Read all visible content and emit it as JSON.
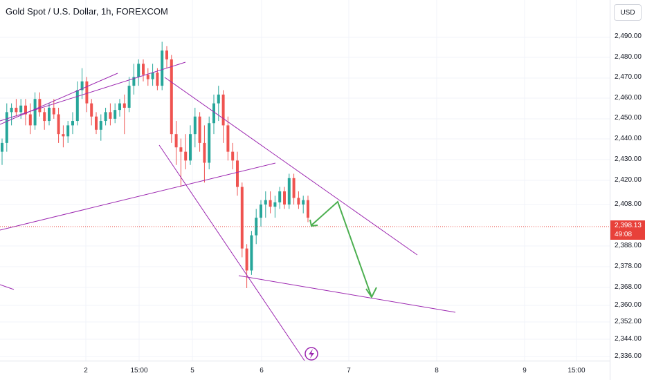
{
  "header": {
    "title": "Gold Spot / U.S. Dollar, 1h, FOREXCOM"
  },
  "price_axis": {
    "currency_button": "USD",
    "ticks": [
      "2,490.00",
      "2,480.00",
      "2,470.00",
      "2,460.00",
      "2,450.00",
      "2,440.00",
      "2,430.00",
      "2,420.00",
      "2,408.00",
      "2,388.00",
      "2,378.00",
      "2,368.00",
      "2,360.00",
      "2,352.00",
      "2,344.00",
      "2,336.00"
    ],
    "last_price": "2,398.13",
    "countdown": "49:08"
  },
  "time_axis": {
    "ticks": [
      "2",
      "15:00",
      "5",
      "6",
      "7",
      "8",
      "9",
      "15:00"
    ]
  },
  "colors": {
    "up": "#26a69a",
    "down": "#ef5350",
    "trendline": "#9c27b0",
    "arrow": "#4caf50",
    "last_price": "#e8413a"
  },
  "icons": {
    "replay": "lightning-icon"
  },
  "chart_data": {
    "type": "candlestick",
    "symbol": "XAUUSD",
    "timeframe": "1h",
    "ylim": [
      2333,
      2497
    ],
    "last_price": 2398.13,
    "candles": [
      [
        2428,
        2434,
        2422,
        2432
      ],
      [
        2432,
        2450,
        2428,
        2446
      ],
      [
        2446,
        2450,
        2440,
        2448
      ],
      [
        2448,
        2452,
        2444,
        2446
      ],
      [
        2446,
        2452,
        2443,
        2449
      ],
      [
        2449,
        2452,
        2440,
        2445
      ],
      [
        2445,
        2450,
        2436,
        2440
      ],
      [
        2440,
        2455,
        2438,
        2452
      ],
      [
        2452,
        2455,
        2444,
        2446
      ],
      [
        2446,
        2448,
        2438,
        2442
      ],
      [
        2442,
        2450,
        2440,
        2448
      ],
      [
        2448,
        2452,
        2443,
        2445
      ],
      [
        2445,
        2448,
        2432,
        2436
      ],
      [
        2436,
        2440,
        2430,
        2435
      ],
      [
        2435,
        2442,
        2432,
        2440
      ],
      [
        2440,
        2446,
        2436,
        2442
      ],
      [
        2442,
        2460,
        2440,
        2456
      ],
      [
        2456,
        2466,
        2452,
        2460
      ],
      [
        2460,
        2462,
        2446,
        2450
      ],
      [
        2450,
        2452,
        2440,
        2444
      ],
      [
        2444,
        2446,
        2436,
        2438
      ],
      [
        2438,
        2445,
        2433,
        2442
      ],
      [
        2442,
        2448,
        2440,
        2446
      ],
      [
        2446,
        2450,
        2440,
        2443
      ],
      [
        2443,
        2450,
        2441,
        2447
      ],
      [
        2447,
        2452,
        2444,
        2450
      ],
      [
        2450,
        2454,
        2436,
        2448
      ],
      [
        2448,
        2462,
        2446,
        2458
      ],
      [
        2458,
        2468,
        2454,
        2462
      ],
      [
        2462,
        2470,
        2458,
        2468
      ],
      [
        2468,
        2470,
        2460,
        2463
      ],
      [
        2463,
        2466,
        2458,
        2461
      ],
      [
        2461,
        2468,
        2458,
        2464
      ],
      [
        2464,
        2466,
        2456,
        2458
      ],
      [
        2458,
        2478,
        2456,
        2474
      ],
      [
        2474,
        2476,
        2466,
        2470
      ],
      [
        2470,
        2472,
        2432,
        2436
      ],
      [
        2436,
        2442,
        2422,
        2430
      ],
      [
        2430,
        2434,
        2412,
        2428
      ],
      [
        2428,
        2436,
        2420,
        2424
      ],
      [
        2424,
        2440,
        2422,
        2436
      ],
      [
        2436,
        2448,
        2430,
        2444
      ],
      [
        2444,
        2446,
        2428,
        2432
      ],
      [
        2432,
        2440,
        2414,
        2423
      ],
      [
        2423,
        2444,
        2420,
        2441
      ],
      [
        2441,
        2454,
        2436,
        2450
      ],
      [
        2450,
        2458,
        2442,
        2454
      ],
      [
        2454,
        2456,
        2432,
        2440
      ],
      [
        2440,
        2444,
        2424,
        2428
      ],
      [
        2428,
        2432,
        2420,
        2424
      ],
      [
        2424,
        2428,
        2408,
        2412
      ],
      [
        2412,
        2414,
        2380,
        2384
      ],
      [
        2384,
        2386,
        2366,
        2374
      ],
      [
        2374,
        2392,
        2372,
        2390
      ],
      [
        2390,
        2402,
        2386,
        2398
      ],
      [
        2398,
        2406,
        2394,
        2404
      ],
      [
        2404,
        2410,
        2398,
        2406
      ],
      [
        2406,
        2410,
        2400,
        2403
      ],
      [
        2403,
        2408,
        2398,
        2405
      ],
      [
        2405,
        2412,
        2402,
        2410
      ],
      [
        2410,
        2412,
        2402,
        2404
      ],
      [
        2404,
        2418,
        2402,
        2416
      ],
      [
        2416,
        2418,
        2404,
        2407
      ],
      [
        2407,
        2410,
        2402,
        2404
      ],
      [
        2404,
        2408,
        2400,
        2406
      ],
      [
        2406,
        2408,
        2396,
        2398
      ]
    ]
  }
}
